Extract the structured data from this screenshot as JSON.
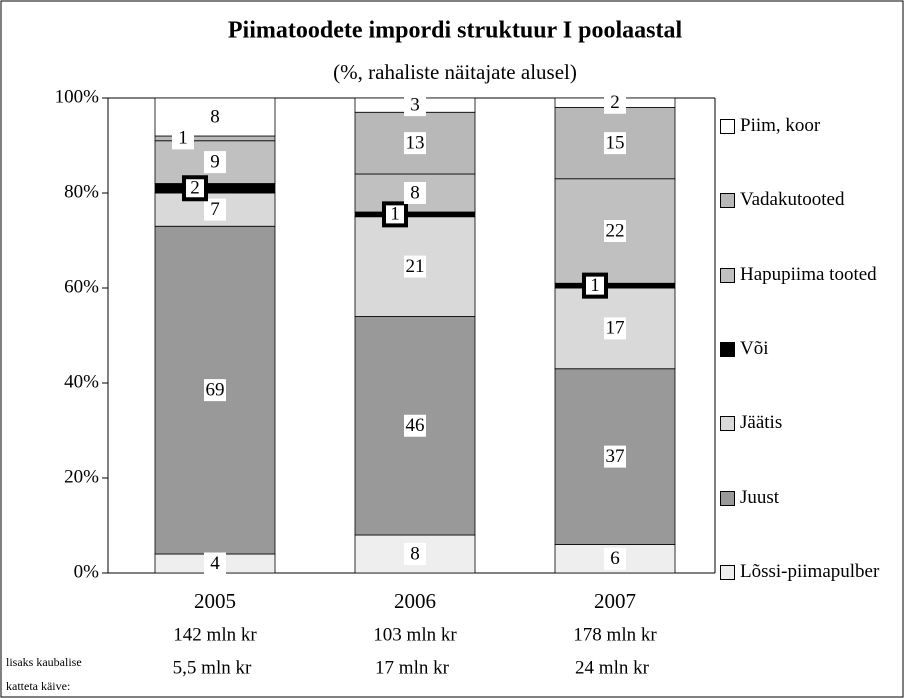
{
  "chart_data": {
    "type": "stacked_bar",
    "title": "Piimatoodete impordi struktuur I poolaastal",
    "subtitle": "(%, rahaliste näitajate alusel)",
    "categories": [
      "2005",
      "2006",
      "2007"
    ],
    "category_notes": [
      "142 mln kr",
      "103 mln kr",
      "178 mln kr"
    ],
    "extra_label": "lisaks kaubalise katteta käive:",
    "extra_values": [
      "5,5 mln kr",
      "17 mln kr",
      "24 mln kr"
    ],
    "series": [
      {
        "name": "Lõssi-piimapulber",
        "color": "#eeeeee",
        "values": [
          4,
          8,
          6
        ]
      },
      {
        "name": "Juust",
        "color": "#999999",
        "values": [
          69,
          46,
          37
        ]
      },
      {
        "name": "Jäätis",
        "color": "#d9d9d9",
        "values": [
          7,
          21,
          17
        ]
      },
      {
        "name": "Või",
        "color": "#000000",
        "values": [
          2,
          1,
          1
        ]
      },
      {
        "name": "Hapupiima tooted",
        "color": "#c0c0c0",
        "values": [
          9,
          8,
          22
        ]
      },
      {
        "name": "Vadakutooted",
        "color": "#b8b8b8",
        "values": [
          1,
          13,
          15
        ]
      },
      {
        "name": "Piim, koor",
        "color": "#ffffff",
        "values": [
          8,
          3,
          2
        ]
      }
    ],
    "ylim": [
      0,
      100
    ],
    "yticks": [
      {
        "value": 0,
        "label": "0%"
      },
      {
        "value": 20,
        "label": "20%"
      },
      {
        "value": 40,
        "label": "40%"
      },
      {
        "value": 60,
        "label": "60%"
      },
      {
        "value": 80,
        "label": "80%"
      },
      {
        "value": 100,
        "label": "100%"
      }
    ]
  }
}
